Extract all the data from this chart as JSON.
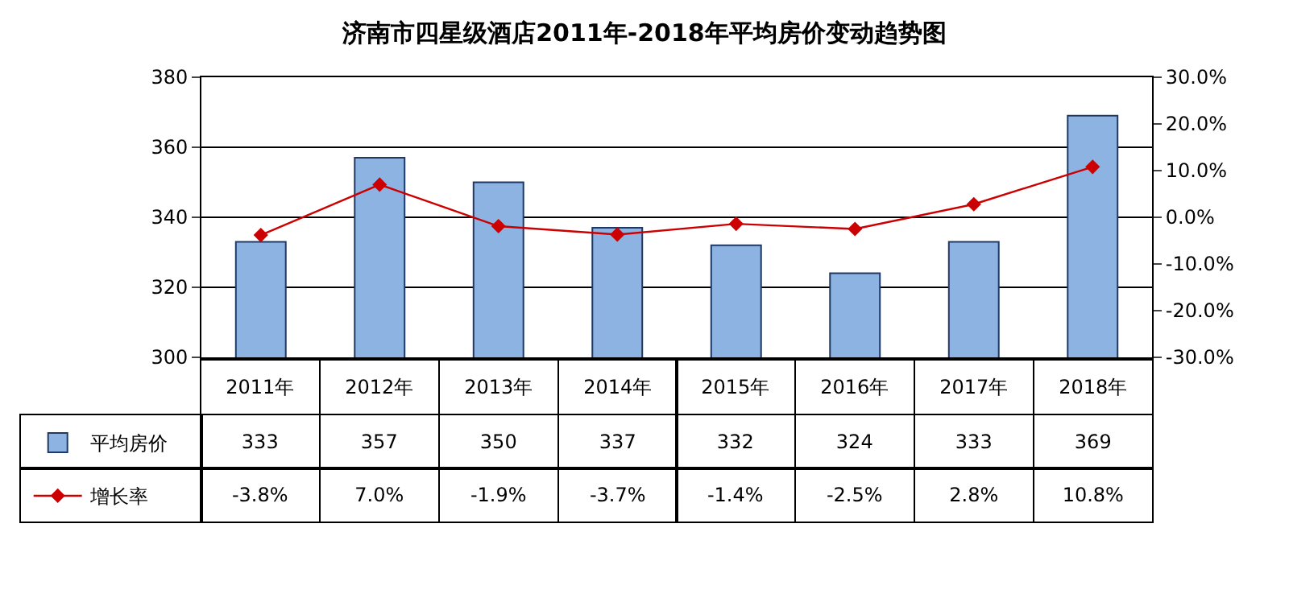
{
  "chart_data": {
    "type": "bar",
    "title": "济南市四星级酒店2011年-2018年平均房价变动趋势图",
    "categories": [
      "2011年",
      "2012年",
      "2013年",
      "2014年",
      "2015年",
      "2016年",
      "2017年",
      "2018年"
    ],
    "series": [
      {
        "name": "平均房价",
        "color": "#8db3e2",
        "values": [
          333,
          357,
          350,
          337,
          332,
          324,
          333,
          369
        ],
        "value_labels": [
          "333",
          "357",
          "350",
          "337",
          "332",
          "324",
          "333",
          "369"
        ]
      },
      {
        "name": "增长率",
        "type": "line",
        "axis": "y2",
        "color": "#cc0000",
        "values": [
          -3.8,
          7.0,
          -1.9,
          -3.7,
          -1.4,
          -2.5,
          2.8,
          10.8
        ],
        "value_labels": [
          "-3.8%",
          "7.0%",
          "-1.9%",
          "-3.7%",
          "-1.4%",
          "-2.5%",
          "2.8%",
          "10.8%"
        ]
      }
    ],
    "ylim": [
      300,
      380
    ],
    "yticks": [
      300,
      320,
      340,
      360,
      380
    ],
    "y2lim": [
      -30,
      30
    ],
    "y2ticks": [
      {
        "value": -30,
        "label": "-30.0%"
      },
      {
        "value": -20,
        "label": "-20.0%"
      },
      {
        "value": -10,
        "label": "-10.0%"
      },
      {
        "value": 0,
        "label": "0.0%"
      },
      {
        "value": 10,
        "label": "10.0%"
      },
      {
        "value": 20,
        "label": "20.0%"
      },
      {
        "value": 30,
        "label": "30.0%"
      }
    ],
    "grid": "y",
    "legend": "bottom left",
    "marker": "diamond",
    "line_style": "solid"
  }
}
